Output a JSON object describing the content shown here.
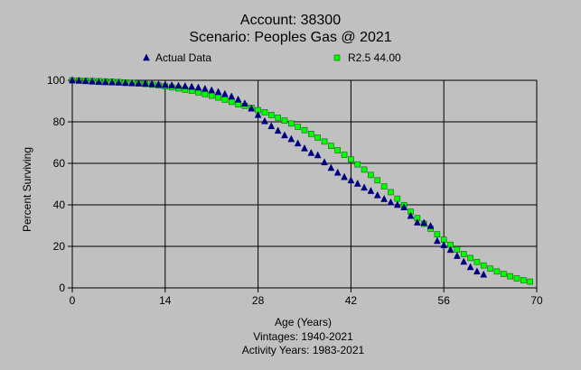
{
  "colors": {
    "background": "#c0c0c0",
    "grid": "#000000",
    "actual_marker": "#000080",
    "fit_marker": "#00ff00",
    "fit_marker_edge": "#006400"
  },
  "chart_data": {
    "type": "scatter",
    "title": "Account: 38300",
    "subtitle": "Scenario: Peoples Gas @ 2021",
    "xlabel": "Age (Years)",
    "ylabel": "Percent Surviving",
    "xlim": [
      0,
      70
    ],
    "ylim": [
      0,
      100
    ],
    "xticks": [
      0,
      14,
      28,
      42,
      56,
      70
    ],
    "yticks": [
      0,
      20,
      40,
      60,
      80,
      100
    ],
    "grid": true,
    "legend_placement": "top",
    "notes": [
      "Vintages: 1940-2021",
      "Activity Years: 1983-2021"
    ],
    "series": [
      {
        "name": "Actual Data",
        "marker": "triangle",
        "color": "#000080",
        "points": [
          [
            0,
            100
          ],
          [
            1,
            99.8
          ],
          [
            2,
            99.6
          ],
          [
            3,
            99.4
          ],
          [
            4,
            99.2
          ],
          [
            5,
            99.1
          ],
          [
            6,
            99.0
          ],
          [
            7,
            98.9
          ],
          [
            8,
            98.7
          ],
          [
            9,
            98.6
          ],
          [
            10,
            98.5
          ],
          [
            11,
            98.4
          ],
          [
            12,
            98.2
          ],
          [
            13,
            98.0
          ],
          [
            14,
            97.8
          ],
          [
            15,
            97.6
          ],
          [
            16,
            97.4
          ],
          [
            17,
            97.2
          ],
          [
            18,
            96.9
          ],
          [
            19,
            96.5
          ],
          [
            20,
            95.9
          ],
          [
            21,
            95.2
          ],
          [
            22,
            94.4
          ],
          [
            23,
            93.4
          ],
          [
            24,
            92.2
          ],
          [
            25,
            90.7
          ],
          [
            26,
            88.8
          ],
          [
            27,
            86.4
          ],
          [
            28,
            83.3
          ],
          [
            29,
            80.3
          ],
          [
            30,
            77.9
          ],
          [
            31,
            75.7
          ],
          [
            32,
            73.5
          ],
          [
            33,
            71.7
          ],
          [
            34,
            69.6
          ],
          [
            35,
            67.2
          ],
          [
            36,
            65.0
          ],
          [
            37,
            63.9
          ],
          [
            38,
            60.5
          ],
          [
            39,
            57.8
          ],
          [
            40,
            55.5
          ],
          [
            41,
            53.4
          ],
          [
            42,
            51.8
          ],
          [
            43,
            50.2
          ],
          [
            44,
            48.3
          ],
          [
            45,
            46.7
          ],
          [
            46,
            44.6
          ],
          [
            47,
            42.8
          ],
          [
            48,
            41.2
          ],
          [
            49,
            40.0
          ],
          [
            50,
            38.8
          ],
          [
            51,
            34.7
          ],
          [
            52,
            31.5
          ],
          [
            53,
            31.3
          ],
          [
            54,
            29.8
          ],
          [
            55,
            22.6
          ],
          [
            56,
            20.6
          ],
          [
            57,
            18.3
          ],
          [
            58,
            15.4
          ],
          [
            59,
            12.6
          ],
          [
            60,
            10.0
          ],
          [
            61,
            7.9
          ],
          [
            62,
            6.4
          ]
        ]
      },
      {
        "name": "R2.5 44.00",
        "marker": "square",
        "color": "#00ff00",
        "points": [
          [
            0,
            100
          ],
          [
            1,
            99.9
          ],
          [
            2,
            99.8
          ],
          [
            3,
            99.7
          ],
          [
            4,
            99.6
          ],
          [
            5,
            99.5
          ],
          [
            6,
            99.4
          ],
          [
            7,
            99.2
          ],
          [
            8,
            99.0
          ],
          [
            9,
            98.8
          ],
          [
            10,
            98.5
          ],
          [
            11,
            98.2
          ],
          [
            12,
            97.9
          ],
          [
            13,
            97.5
          ],
          [
            14,
            97.1
          ],
          [
            15,
            96.6
          ],
          [
            16,
            96.1
          ],
          [
            17,
            95.5
          ],
          [
            18,
            94.9
          ],
          [
            19,
            94.2
          ],
          [
            20,
            93.4
          ],
          [
            21,
            92.6
          ],
          [
            22,
            91.7
          ],
          [
            23,
            90.7
          ],
          [
            24,
            89.6
          ],
          [
            25,
            88.4
          ],
          [
            26,
            87.7
          ],
          [
            27,
            86.8
          ],
          [
            28,
            85.6
          ],
          [
            29,
            84.6
          ],
          [
            30,
            83.3
          ],
          [
            31,
            82.0
          ],
          [
            32,
            80.6
          ],
          [
            33,
            79.2
          ],
          [
            34,
            77.6
          ],
          [
            35,
            76.0
          ],
          [
            36,
            74.2
          ],
          [
            37,
            72.4
          ],
          [
            38,
            70.5
          ],
          [
            39,
            68.4
          ],
          [
            40,
            66.3
          ],
          [
            41,
            64.1
          ],
          [
            42,
            61.9
          ],
          [
            43,
            59.5
          ],
          [
            44,
            57.0
          ],
          [
            45,
            54.4
          ],
          [
            46,
            51.8
          ],
          [
            47,
            48.9
          ],
          [
            48,
            46.1
          ],
          [
            49,
            43.0
          ],
          [
            50,
            39.9
          ],
          [
            51,
            36.7
          ],
          [
            52,
            33.6
          ],
          [
            53,
            30.9
          ],
          [
            54,
            28.5
          ],
          [
            55,
            25.8
          ],
          [
            56,
            23.2
          ],
          [
            57,
            20.8
          ],
          [
            58,
            18.5
          ],
          [
            59,
            16.3
          ],
          [
            60,
            14.4
          ],
          [
            61,
            12.5
          ],
          [
            62,
            10.8
          ],
          [
            63,
            9.3
          ],
          [
            64,
            7.9
          ],
          [
            65,
            6.7
          ],
          [
            66,
            5.6
          ],
          [
            67,
            4.6
          ],
          [
            68,
            3.7
          ],
          [
            69,
            3.0
          ]
        ]
      }
    ]
  }
}
